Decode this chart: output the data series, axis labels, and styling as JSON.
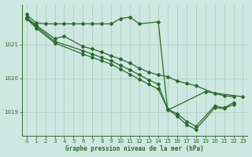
{
  "title": "Graphe pression niveau de la mer (hPa)",
  "bg_color": "#cce8e0",
  "line_color": "#2d6a2d",
  "grid_color": "#aaccbb",
  "xlim": [
    -0.5,
    23.5
  ],
  "ylim": [
    1018.3,
    1022.2
  ],
  "yticks": [
    1019,
    1020,
    1021
  ],
  "xticks": [
    0,
    1,
    2,
    3,
    4,
    5,
    6,
    7,
    8,
    9,
    10,
    11,
    12,
    13,
    14,
    15,
    16,
    17,
    18,
    19,
    20,
    21,
    22,
    23
  ],
  "series": [
    {
      "x": [
        0,
        1,
        2,
        3,
        4,
        5,
        6,
        7,
        8,
        9,
        10,
        11,
        12,
        14,
        15,
        19,
        23
      ],
      "y": [
        1021.9,
        1021.65,
        1021.62,
        1021.62,
        1021.62,
        1021.62,
        1021.62,
        1021.62,
        1021.62,
        1021.62,
        1021.78,
        1021.82,
        1021.62,
        1021.68,
        1019.05,
        1019.6,
        1019.45
      ]
    },
    {
      "x": [
        0,
        1,
        3,
        4,
        6,
        7,
        8,
        9,
        10,
        11,
        12,
        13,
        14,
        15,
        16,
        17,
        18,
        20,
        21,
        22
      ],
      "y": [
        1021.82,
        1021.58,
        1021.18,
        1021.25,
        1020.95,
        1020.87,
        1020.78,
        1020.67,
        1020.57,
        1020.45,
        1020.3,
        1020.18,
        1020.1,
        1020.05,
        1019.92,
        1019.85,
        1019.78,
        1019.55,
        1019.48,
        1019.45
      ]
    },
    {
      "x": [
        0,
        1,
        3,
        6,
        7,
        8,
        9,
        10,
        11,
        12,
        13,
        14,
        15,
        16,
        17,
        18,
        20,
        21,
        22
      ],
      "y": [
        1021.8,
        1021.55,
        1021.1,
        1020.82,
        1020.72,
        1020.62,
        1020.52,
        1020.38,
        1020.25,
        1020.1,
        1019.95,
        1019.82,
        1019.08,
        1018.95,
        1018.72,
        1018.57,
        1019.18,
        1019.12,
        1019.28
      ]
    },
    {
      "x": [
        0,
        1,
        3,
        6,
        7,
        8,
        9,
        10,
        11,
        12,
        13,
        14,
        15,
        16,
        17,
        18,
        20,
        21,
        22
      ],
      "y": [
        1021.78,
        1021.5,
        1021.05,
        1020.72,
        1020.62,
        1020.52,
        1020.42,
        1020.27,
        1020.12,
        1019.97,
        1019.82,
        1019.68,
        1019.08,
        1018.88,
        1018.62,
        1018.48,
        1019.12,
        1019.1,
        1019.22
      ]
    }
  ]
}
